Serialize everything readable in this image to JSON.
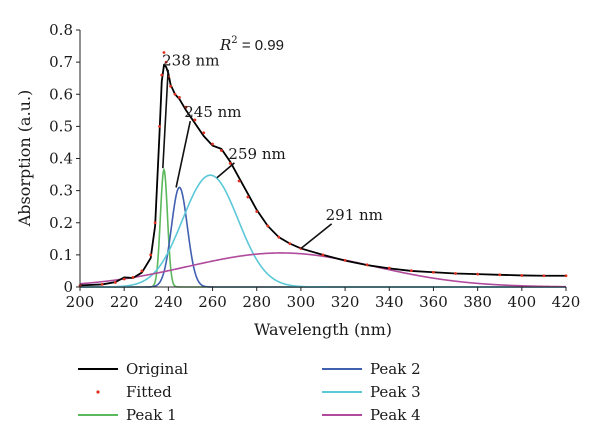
{
  "chart_data": {
    "type": "line",
    "xlabel": "Wavelength (nm)",
    "ylabel": "Absorption (a.u.)",
    "xlim": [
      200,
      420
    ],
    "ylim": [
      0,
      0.8
    ],
    "x_ticks": [
      "200",
      "220",
      "240",
      "260",
      "280",
      "300",
      "320",
      "340",
      "360",
      "380",
      "400",
      "420"
    ],
    "y_ticks": [
      "0",
      "0.1",
      "0.2",
      "0.3",
      "0.4",
      "0.5",
      "0.6",
      "0.7",
      "0.8"
    ],
    "grid": false,
    "legend_position": "bottom",
    "r2_label": {
      "prefix": "R",
      "sup": "2",
      "suffix": " = 0.99"
    },
    "series": [
      {
        "name": "Original",
        "color": "#000000",
        "style": "line",
        "x": [
          200,
          210,
          216,
          220,
          224,
          228,
          232,
          234,
          236,
          237,
          238,
          239,
          240,
          241,
          243,
          245,
          248,
          252,
          256,
          260,
          264,
          268,
          272,
          276,
          280,
          285,
          290,
          295,
          300,
          310,
          320,
          330,
          340,
          350,
          360,
          370,
          380,
          390,
          400,
          410,
          420
        ],
        "y": [
          0.005,
          0.008,
          0.015,
          0.03,
          0.028,
          0.045,
          0.09,
          0.19,
          0.48,
          0.64,
          0.69,
          0.685,
          0.665,
          0.63,
          0.6,
          0.585,
          0.55,
          0.51,
          0.47,
          0.44,
          0.43,
          0.39,
          0.34,
          0.29,
          0.24,
          0.19,
          0.155,
          0.135,
          0.12,
          0.1,
          0.082,
          0.068,
          0.058,
          0.05,
          0.046,
          0.042,
          0.04,
          0.038,
          0.036,
          0.035,
          0.035
        ]
      },
      {
        "name": "Fitted",
        "color": "#e03020",
        "style": "dots",
        "x": [
          200,
          210,
          216,
          220,
          224,
          228,
          232,
          234,
          236,
          237,
          238,
          239,
          240,
          241,
          243,
          245,
          248,
          252,
          256,
          260,
          264,
          268,
          272,
          276,
          280,
          285,
          290,
          295,
          300,
          310,
          320,
          330,
          340,
          350,
          360,
          370,
          380,
          390,
          400,
          410,
          420
        ],
        "y": [
          0.004,
          0.008,
          0.014,
          0.025,
          0.03,
          0.05,
          0.1,
          0.2,
          0.5,
          0.66,
          0.73,
          0.7,
          0.655,
          0.625,
          0.6,
          0.59,
          0.56,
          0.52,
          0.48,
          0.445,
          0.425,
          0.385,
          0.33,
          0.28,
          0.235,
          0.19,
          0.155,
          0.135,
          0.12,
          0.1,
          0.083,
          0.069,
          0.059,
          0.051,
          0.046,
          0.042,
          0.04,
          0.038,
          0.036,
          0.035,
          0.035
        ]
      },
      {
        "name": "Peak 1",
        "color": "#5cb85c",
        "style": "gaussian",
        "center": 238,
        "amplitude": 0.365,
        "sigma": 1.6
      },
      {
        "name": "Peak 2",
        "color": "#4060b0",
        "style": "gaussian",
        "center": 245,
        "amplitude": 0.31,
        "sigma": 3.6
      },
      {
        "name": "Peak 3",
        "color": "#5bc8d8",
        "style": "gaussian",
        "center": 259,
        "amplitude": 0.348,
        "sigma": 12.5
      },
      {
        "name": "Peak 4",
        "color": "#b04a9c",
        "style": "gaussian",
        "center": 291,
        "amplitude": 0.106,
        "sigma": 42
      }
    ],
    "annotations": [
      {
        "text": "238 nm",
        "label_x": 239,
        "label_y": 0.695,
        "arrow_x": 237.5,
        "arrow_y": 0.37
      },
      {
        "text": "245 nm",
        "label_x": 249,
        "label_y": 0.535,
        "arrow_x": 243.5,
        "arrow_y": 0.31
      },
      {
        "text": "259 nm",
        "label_x": 269,
        "label_y": 0.405,
        "arrow_x": 262,
        "arrow_y": 0.34
      },
      {
        "text": "291 nm",
        "label_x": 313,
        "label_y": 0.215,
        "arrow_x": 300,
        "arrow_y": 0.12
      }
    ]
  }
}
